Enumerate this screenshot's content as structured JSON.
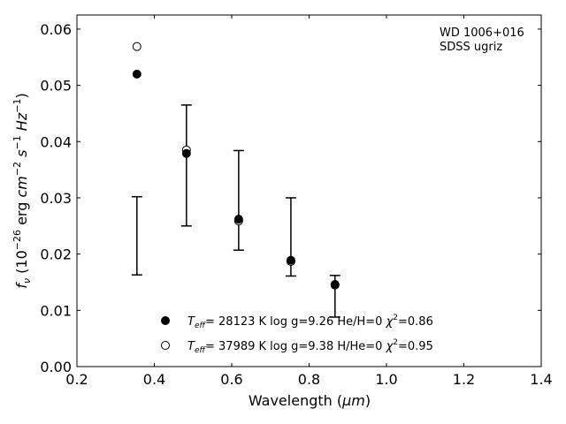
{
  "chart_data": {
    "type": "scatter",
    "xlabel_text": "Wavelength (",
    "xlabel_unit": "μm",
    "xlabel_close": ")",
    "ylabel_var": "f",
    "ylabel_sub": "ν",
    "ylabel_open": " (10",
    "ylabel_exp": "−26",
    "ylabel_mid": " erg ",
    "ylabel_cm": "cm",
    "ylabel_cm_exp": "−2",
    "ylabel_s": "s",
    "ylabel_s_exp": "−1",
    "ylabel_hz": "Hz",
    "ylabel_hz_exp": "−1",
    "ylabel_close": ")",
    "xlim": [
      0.2,
      1.4
    ],
    "ylim": [
      0.0,
      0.0625
    ],
    "xticks": [
      0.2,
      0.4,
      0.6,
      0.8,
      1.0,
      1.2,
      1.4
    ],
    "xtick_labels": [
      "0.2",
      "0.4",
      "0.6",
      "0.8",
      "1.0",
      "1.2",
      "1.4"
    ],
    "yticks": [
      0.0,
      0.01,
      0.02,
      0.03,
      0.04,
      0.05,
      0.06
    ],
    "ytick_labels": [
      "0.00",
      "0.01",
      "0.02",
      "0.03",
      "0.04",
      "0.05",
      "0.06"
    ],
    "grid": false,
    "annotation_line1": "WD 1006+016",
    "annotation_line2": "SDSS ugriz",
    "observed": {
      "x": [
        0.355,
        0.483,
        0.618,
        0.753,
        0.867
      ],
      "y_low": [
        0.0163,
        0.025,
        0.0207,
        0.0161,
        0.0088
      ],
      "y_high": [
        0.0302,
        0.0465,
        0.0384,
        0.03,
        0.0162
      ]
    },
    "series": [
      {
        "marker": "filled-circle",
        "x": [
          0.355,
          0.483,
          0.618,
          0.753,
          0.867
        ],
        "y": [
          0.052,
          0.0379,
          0.0262,
          0.0189,
          0.0146
        ],
        "legend": {
          "teff_label": "T",
          "teff_sub": "eff",
          "text": "= 28123 K  log g=9.26  He/H=0  ",
          "chi": "χ",
          "chi_exp": "2",
          "chi_val": "=0.86"
        }
      },
      {
        "marker": "open-circle",
        "x": [
          0.355,
          0.483,
          0.618,
          0.753,
          0.867
        ],
        "y": [
          0.0569,
          0.0385,
          0.0259,
          0.0187,
          0.0145
        ],
        "legend": {
          "teff_label": "T",
          "teff_sub": "eff",
          "text": "= 37989 K  log g=9.38  H/He=0  ",
          "chi": "χ",
          "chi_exp": "2",
          "chi_val": "=0.95"
        }
      }
    ],
    "legend_position": "lower-center"
  }
}
